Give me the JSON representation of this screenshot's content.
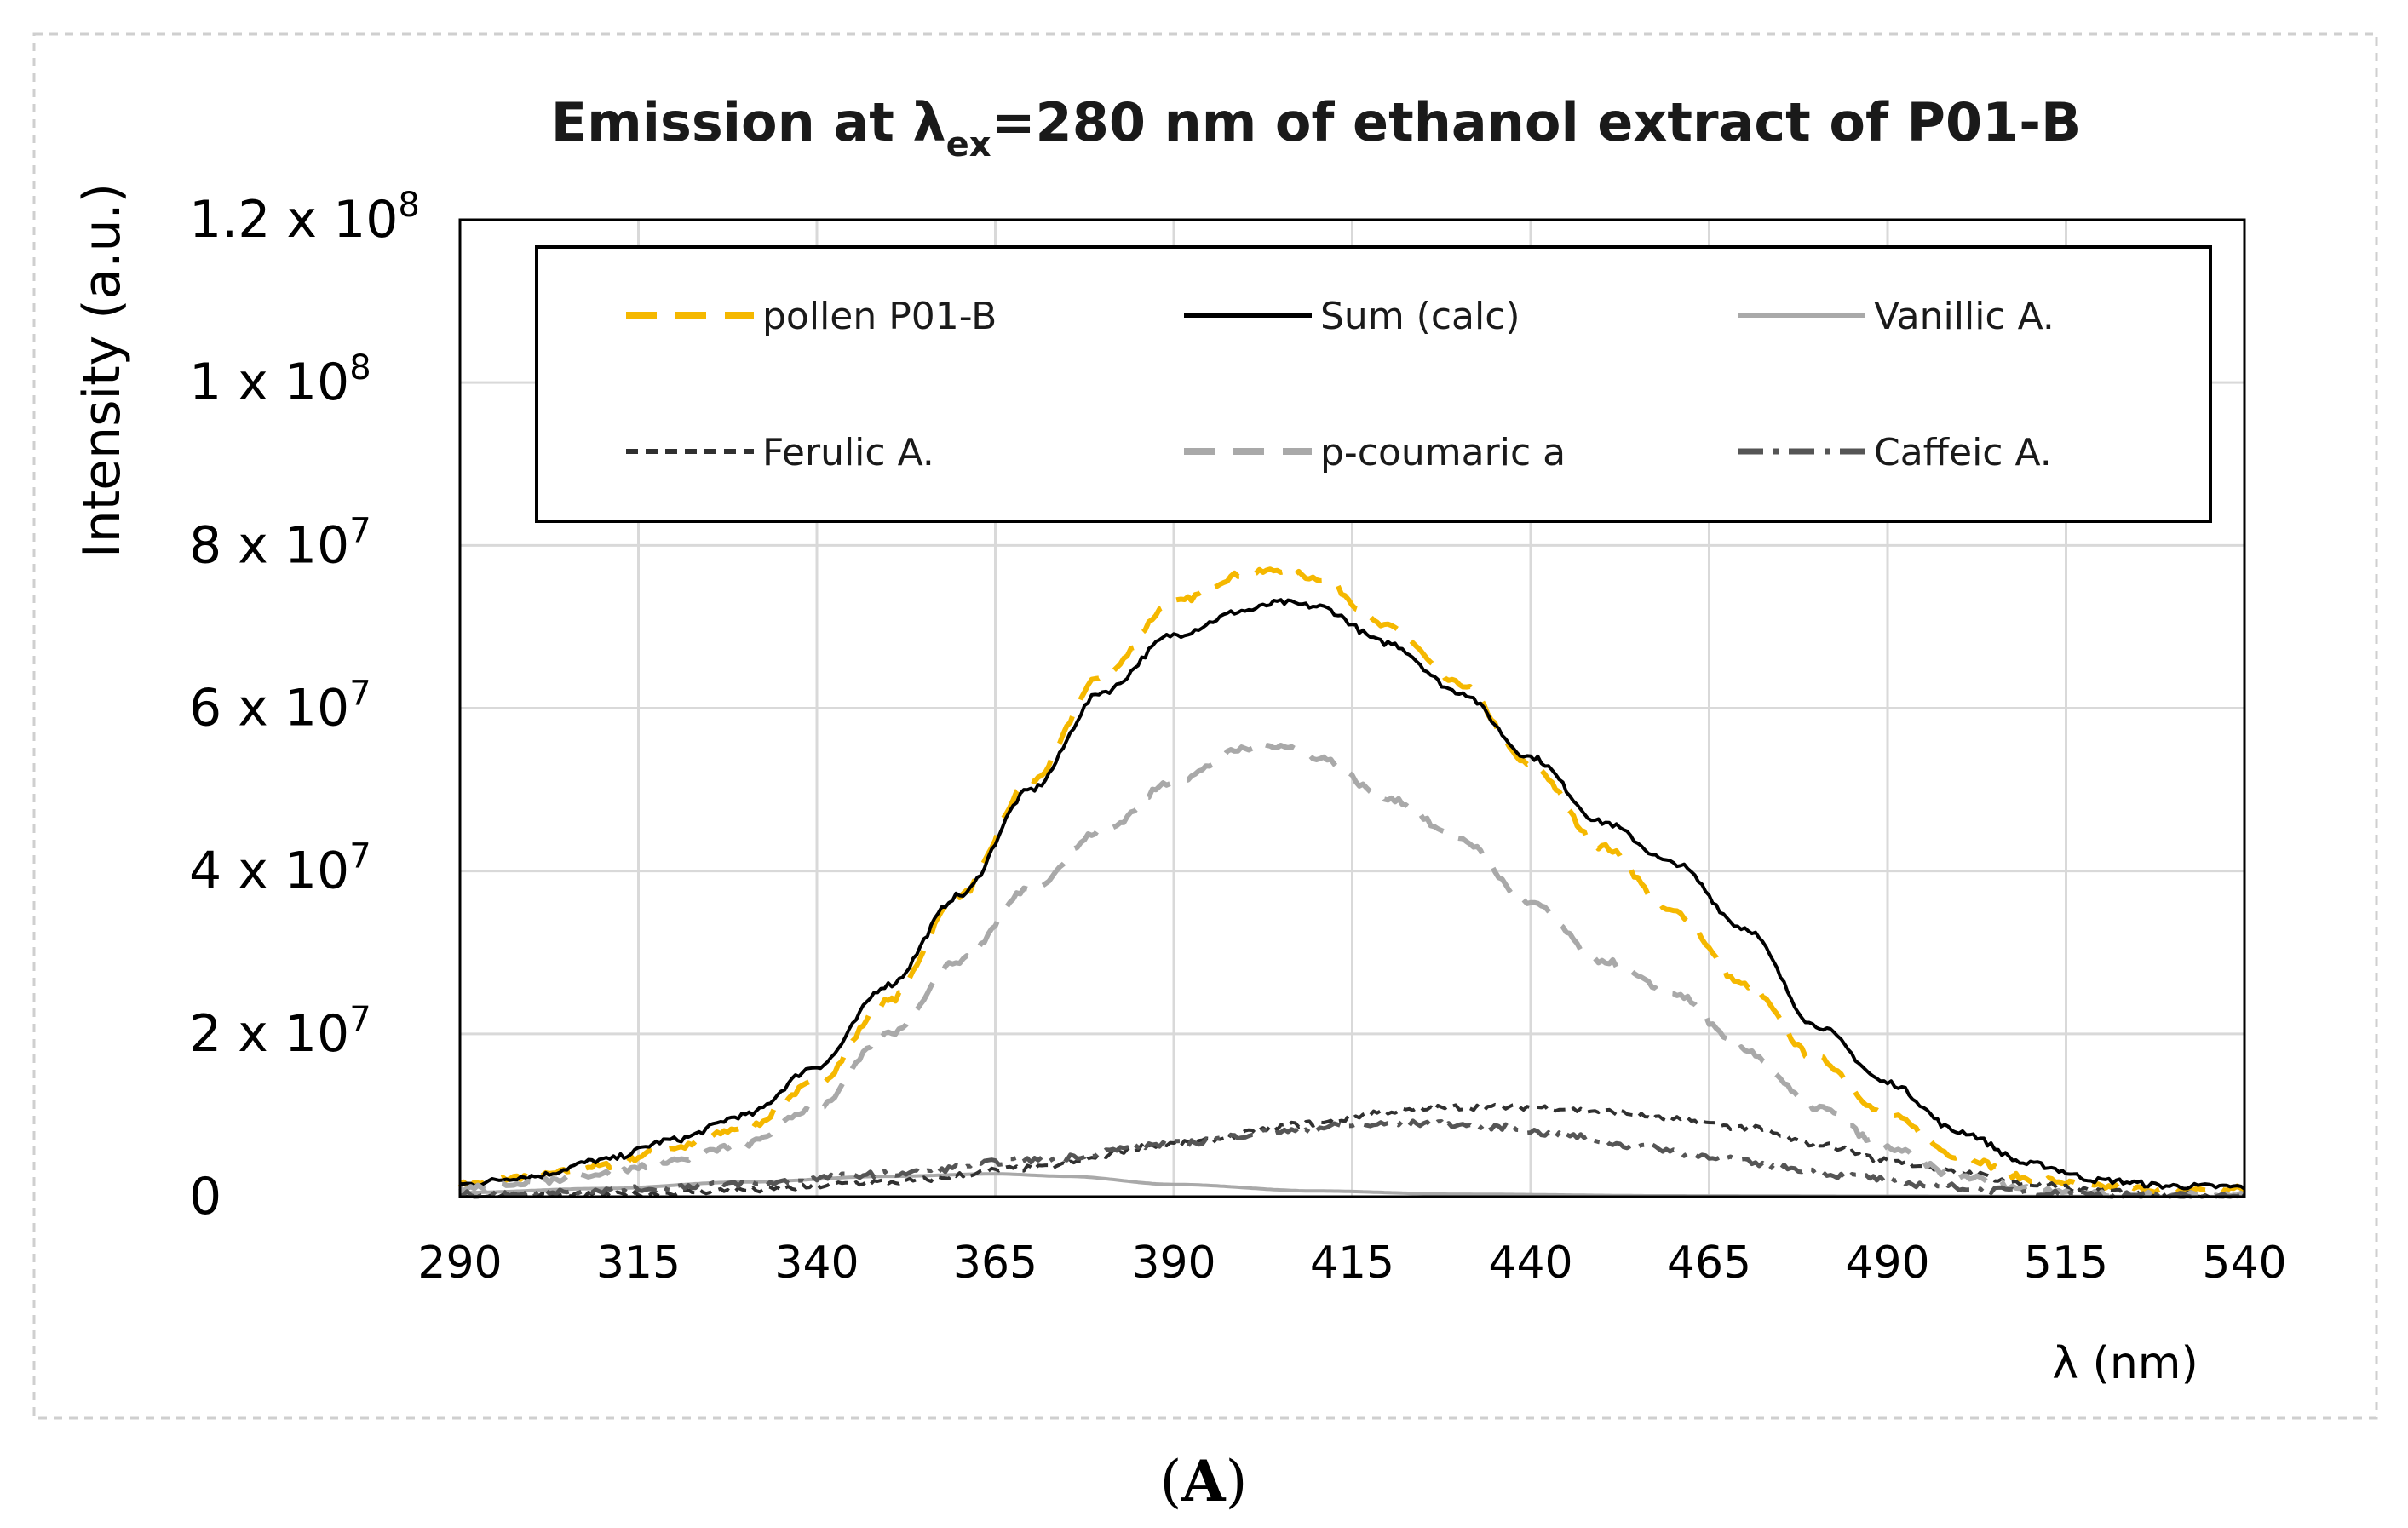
{
  "chart_data": {
    "type": "line",
    "title_main": "Emission at λ",
    "title_sub": "ex",
    "title_rest": "=280 nm of ethanol extract of P01-B",
    "xlabel": "λ (nm)",
    "ylabel": "Intensity (a.u.)",
    "xlim": [
      290,
      540
    ],
    "ylim": [
      0,
      120000000
    ],
    "grid": true,
    "x_ticks": [
      290,
      315,
      340,
      365,
      390,
      415,
      440,
      465,
      490,
      515,
      540
    ],
    "y_ticks": [
      {
        "value": 0,
        "mantissa": "0",
        "exp": ""
      },
      {
        "value": 20000000,
        "mantissa": "2 x 10",
        "exp": "7"
      },
      {
        "value": 40000000,
        "mantissa": "4 x 10",
        "exp": "7"
      },
      {
        "value": 60000000,
        "mantissa": "6 x 10",
        "exp": "7"
      },
      {
        "value": 80000000,
        "mantissa": "8 x 10",
        "exp": "7"
      },
      {
        "value": 100000000,
        "mantissa": "1 x 10",
        "exp": "8"
      },
      {
        "value": 120000000,
        "mantissa": "1.2 x 10",
        "exp": "8"
      }
    ],
    "legend_position": "top",
    "series": [
      {
        "name": "pollen P01-B",
        "color": "#F5B800",
        "style": "dashed-long",
        "x": [
          290,
          300,
          310,
          320,
          330,
          340,
          350,
          360,
          370,
          380,
          390,
          400,
          405,
          410,
          420,
          430,
          440,
          450,
          460,
          470,
          480,
          490,
          500,
          510,
          520,
          530,
          540
        ],
        "y": [
          1500000,
          2500000,
          3800000,
          6000000,
          8500000,
          14000000,
          24000000,
          37000000,
          51000000,
          64000000,
          73000000,
          76500000,
          77000000,
          76000000,
          70000000,
          63000000,
          53000000,
          43000000,
          35000000,
          26000000,
          17000000,
          10000000,
          5000000,
          2200000,
          1200000,
          800000,
          1000000
        ]
      },
      {
        "name": "Sum (calc)",
        "color": "#000000",
        "style": "solid",
        "x": [
          290,
          300,
          310,
          320,
          330,
          340,
          350,
          360,
          370,
          380,
          390,
          400,
          405,
          410,
          420,
          430,
          440,
          450,
          460,
          470,
          480,
          490,
          500,
          510,
          520,
          530,
          540
        ],
        "y": [
          1500000,
          2500000,
          4500000,
          7000000,
          10000000,
          16000000,
          26000000,
          37000000,
          50000000,
          62000000,
          69000000,
          72000000,
          73000000,
          72500000,
          68000000,
          62000000,
          54000000,
          46000000,
          41000000,
          33000000,
          21000000,
          14000000,
          8000000,
          4000000,
          2000000,
          1300000,
          1200000
        ]
      },
      {
        "name": "Vanillic A.",
        "color": "#A9A9A9",
        "style": "solid",
        "x": [
          290,
          310,
          330,
          350,
          365,
          375,
          390,
          410,
          430,
          460,
          490,
          520,
          540
        ],
        "y": [
          500000,
          1000000,
          1800000,
          2500000,
          2800000,
          2500000,
          1500000,
          700000,
          300000,
          100000,
          50000,
          20000,
          10000
        ]
      },
      {
        "name": "Ferulic A.",
        "color": "#303030",
        "style": "dashed-short",
        "x": [
          290,
          310,
          330,
          350,
          370,
          390,
          410,
          420,
          430,
          440,
          450,
          460,
          470,
          480,
          490,
          500,
          510,
          520,
          530,
          540
        ],
        "y": [
          0,
          200000,
          800000,
          1800000,
          3500000,
          6500000,
          9000000,
          10500000,
          11000000,
          11000000,
          10500000,
          9500000,
          8500000,
          6500000,
          4500000,
          3000000,
          1500000,
          700000,
          300000,
          100000
        ]
      },
      {
        "name": "p-coumaric a",
        "color": "#A9A9A9",
        "style": "dashed-long",
        "x": [
          290,
          300,
          310,
          320,
          330,
          340,
          350,
          360,
          370,
          380,
          390,
          400,
          405,
          410,
          420,
          430,
          440,
          450,
          460,
          470,
          480,
          490,
          500,
          510,
          520,
          530,
          540
        ],
        "y": [
          1000000,
          1800000,
          2800000,
          4500000,
          6500000,
          11000000,
          20000000,
          29000000,
          38000000,
          45000000,
          51000000,
          55000000,
          55500000,
          54000000,
          49000000,
          44000000,
          36000000,
          29000000,
          25000000,
          18000000,
          11000000,
          6000000,
          2500000,
          1000000,
          400000,
          200000,
          100000
        ]
      },
      {
        "name": "Caffeic A.",
        "color": "#555555",
        "style": "dash-dot",
        "x": [
          290,
          310,
          330,
          350,
          370,
          390,
          405,
          415,
          425,
          435,
          445,
          455,
          465,
          475,
          485,
          495,
          505,
          515,
          525,
          540
        ],
        "y": [
          300000,
          800000,
          1600000,
          2800000,
          4500000,
          6500000,
          8000000,
          8800000,
          9000000,
          8600000,
          7500000,
          6200000,
          5000000,
          3600000,
          2500000,
          1500000,
          800000,
          400000,
          200000,
          100000
        ]
      }
    ],
    "panel_label": "A",
    "panel_open": "(",
    "panel_close": ")"
  }
}
